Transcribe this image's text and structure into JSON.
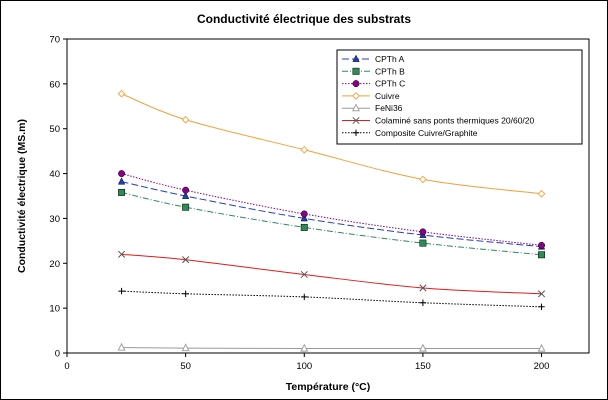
{
  "chart_data": {
    "type": "line",
    "title": "Conductivité électrique des substrats",
    "xlabel": "Température (°C)",
    "ylabel": "Conductivité électrique (MS.m)",
    "xlim": [
      0,
      220
    ],
    "ylim": [
      0,
      70
    ],
    "xticks": [
      0,
      50,
      100,
      150,
      200
    ],
    "yticks": [
      0,
      10,
      20,
      30,
      40,
      50,
      60,
      70
    ],
    "grid": false,
    "legend_position": "top-right",
    "x": [
      23,
      50,
      100,
      150,
      200
    ],
    "series": [
      {
        "name": "CPTh A",
        "color": "#1f3fbf",
        "dash": "7,3",
        "marker": "triangle-filled",
        "values": [
          38.2,
          35.0,
          30.0,
          26.3,
          23.7
        ]
      },
      {
        "name": "CPTh B",
        "color": "#2e8b57",
        "dash": "6,2,1,2",
        "marker": "square-filled",
        "values": [
          35.8,
          32.5,
          28.0,
          24.5,
          21.9
        ]
      },
      {
        "name": "CPTh C",
        "color": "#8b008b",
        "dash": "1.5,1.5",
        "marker": "circle-filled",
        "values": [
          40.0,
          36.3,
          31.0,
          27.0,
          24.0
        ]
      },
      {
        "name": "Cuivre",
        "color": "#f2a23a",
        "dash": "",
        "marker": "diamond-open",
        "values": [
          57.8,
          52.0,
          45.3,
          38.7,
          35.5
        ]
      },
      {
        "name": "FeNi36",
        "color": "#999999",
        "dash": "",
        "marker": "triangle-open",
        "values": [
          1.2,
          1.1,
          1.0,
          1.0,
          1.0
        ]
      },
      {
        "name": "Colaminé sans ponts thermiques 20/60/20",
        "color": "#e31a1c",
        "dash": "",
        "marker": "x",
        "values": [
          22.0,
          20.8,
          17.5,
          14.5,
          13.2
        ]
      },
      {
        "name": "Composite Cuivre/Graphite",
        "color": "#000000",
        "dash": "1.5,1.5",
        "marker": "plus",
        "values": [
          13.8,
          13.2,
          12.5,
          11.2,
          10.3
        ]
      }
    ]
  }
}
